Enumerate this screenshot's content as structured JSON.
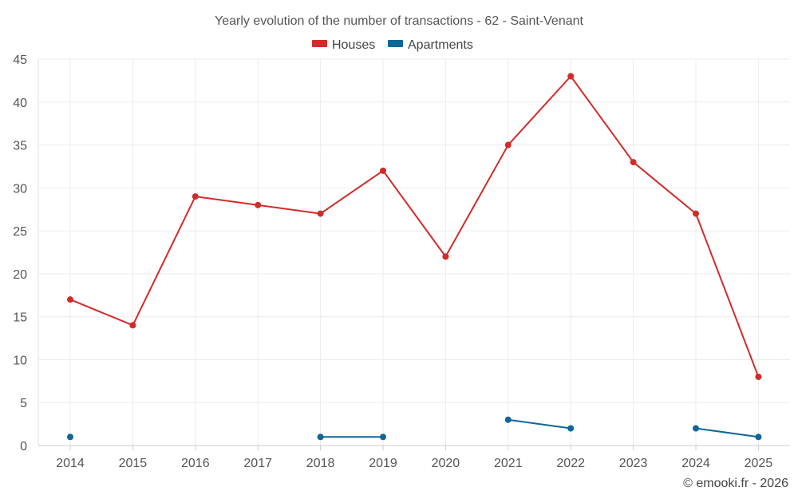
{
  "chart_data": {
    "type": "line",
    "title": "Yearly evolution of the number of transactions - 62 - Saint-Venant",
    "xlabel": "",
    "ylabel": "",
    "categories": [
      "2014",
      "2015",
      "2016",
      "2017",
      "2018",
      "2019",
      "2020",
      "2021",
      "2022",
      "2023",
      "2024",
      "2025"
    ],
    "ylim": [
      0,
      45
    ],
    "yticks": [
      0,
      5,
      10,
      15,
      20,
      25,
      30,
      35,
      40,
      45
    ],
    "grid": true,
    "legend_position": "top-center",
    "series": [
      {
        "name": "Houses",
        "color": "#d32a2a",
        "values": [
          17,
          14,
          29,
          28,
          27,
          32,
          22,
          35,
          43,
          33,
          27,
          8
        ]
      },
      {
        "name": "Apartments",
        "color": "#0f6699",
        "values": [
          1,
          null,
          null,
          null,
          1,
          1,
          null,
          3,
          2,
          null,
          2,
          1
        ]
      }
    ]
  },
  "footer": {
    "credit": "© emooki.fr - 2026"
  }
}
